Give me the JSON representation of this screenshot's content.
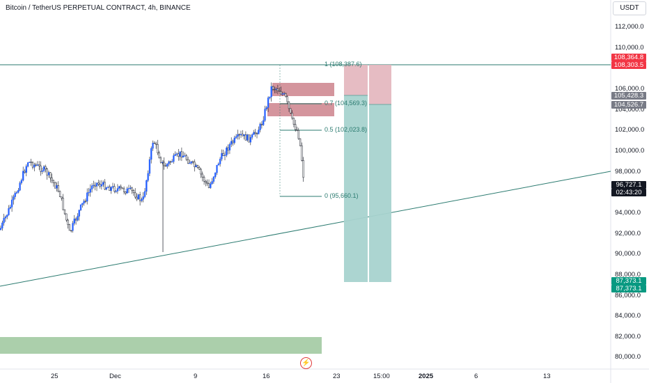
{
  "header": {
    "title": "Bitcoin / TetherUS PERPETUAL CONTRACT, 4h, BINANCE",
    "currency": "USDT"
  },
  "price_axis": {
    "labels": [
      "112,000.0",
      "110,000.0",
      "106,000.0",
      "104,000.0",
      "102,000.0",
      "100,000.0",
      "98,000.0",
      "94,000.0",
      "92,000.0",
      "90,000.0",
      "88,000.0",
      "86,000.0",
      "84,000.0",
      "82,000.0",
      "80,000.0"
    ]
  },
  "time_axis": {
    "labels": [
      "25",
      "Dec",
      "9",
      "16",
      "23",
      "15:00",
      "2025",
      "6",
      "13"
    ]
  },
  "price_tags": {
    "fib_top": "108,364.8",
    "stop": "108,303.5",
    "entry_top": "105,428.3",
    "entry": "104,526.7",
    "last_price": "96,727.1",
    "countdown": "02:43:20",
    "target_a": "87,373.1",
    "target_b": "87,373.1"
  },
  "fib_levels": {
    "l1": "1 (108,387.6)",
    "l07": "0.7 (104,569.3)",
    "l05": "0.5 (102,023.8)",
    "l0": "0 (95,660.1)"
  },
  "colors": {
    "up": "#2962ff",
    "down": "#131722",
    "trendline": "#2a7a6f",
    "stop_zone": "#e3b5bd",
    "profit_zone": "#a8d3cf",
    "ob_zone": "#c97a85",
    "demand_zone": "#9cc79c",
    "red_tag": "#f23645",
    "green_tag": "#089981",
    "gray_tag": "#787b86"
  }
}
